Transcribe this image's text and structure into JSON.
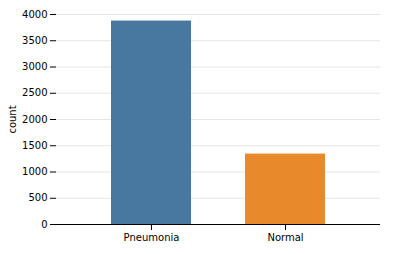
{
  "chart_data": {
    "type": "bar",
    "categories": [
      "Pneumonia",
      "Normal"
    ],
    "values": [
      3875,
      1341
    ],
    "colors": [
      "#4878a0",
      "#e8892b"
    ],
    "ylabel": "count",
    "ylim": [
      0,
      4000
    ],
    "yticks": [
      0,
      500,
      1000,
      1500,
      2000,
      2500,
      3000,
      3500,
      4000
    ],
    "grid": true
  }
}
